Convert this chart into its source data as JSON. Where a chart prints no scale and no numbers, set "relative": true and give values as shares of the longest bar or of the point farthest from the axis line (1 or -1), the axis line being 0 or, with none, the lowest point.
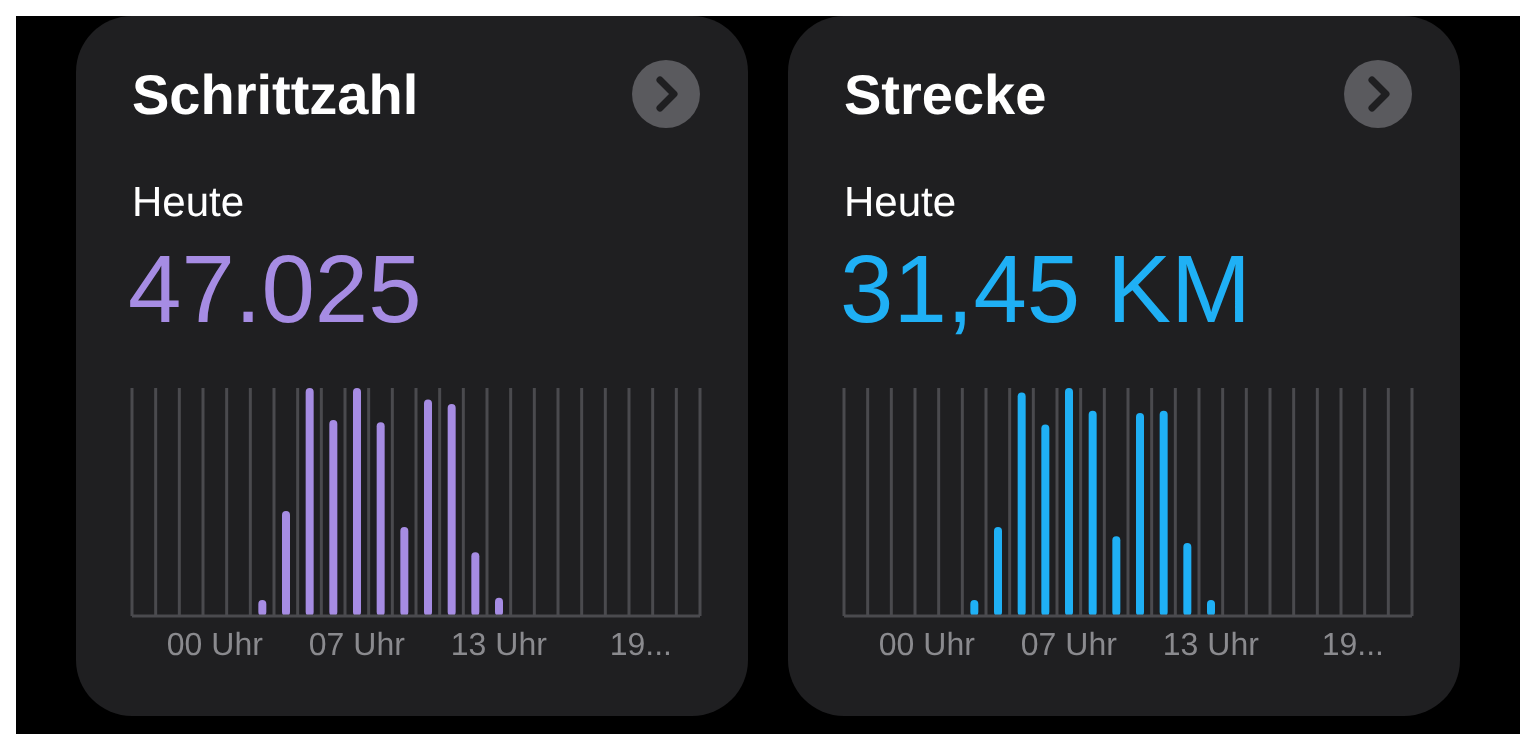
{
  "chart_data": [
    {
      "type": "bar",
      "title": "Schrittzahl",
      "subtitle": "Heute",
      "annotations": [
        "47.025"
      ],
      "relative": true,
      "grid": "x",
      "legend": false,
      "categories": [
        null,
        null,
        null,
        "00 Uhr",
        null,
        null,
        null,
        null,
        null,
        "07 Uhr",
        null,
        null,
        null,
        null,
        null,
        "13 Uhr",
        null,
        null,
        null,
        null,
        null,
        "19...",
        null,
        null
      ],
      "series": [
        {
          "color": "#a68ce3",
          "values": [
            null,
            null,
            null,
            null,
            null,
            0.07,
            0.46,
            1,
            0.86,
            1,
            0.85,
            0.39,
            0.95,
            0.93,
            0.28,
            0.08,
            null,
            null,
            null,
            null,
            null,
            null,
            null,
            null
          ]
        }
      ]
    },
    {
      "type": "bar",
      "title": "Strecke",
      "subtitle": "Heute",
      "annotations": [
        "31,45 KM"
      ],
      "relative": true,
      "grid": "x",
      "legend": false,
      "categories": [
        null,
        null,
        null,
        "00 Uhr",
        null,
        null,
        null,
        null,
        null,
        "07 Uhr",
        null,
        null,
        null,
        null,
        null,
        "13 Uhr",
        null,
        null,
        null,
        null,
        null,
        "19...",
        null,
        null
      ],
      "series": [
        {
          "color": "#1fb0f5",
          "values": [
            null,
            null,
            null,
            null,
            null,
            0.07,
            0.39,
            0.98,
            0.84,
            1,
            0.9,
            0.35,
            0.89,
            0.9,
            0.32,
            0.07,
            null,
            null,
            null,
            null,
            null,
            null,
            null,
            null
          ]
        }
      ]
    }
  ]
}
